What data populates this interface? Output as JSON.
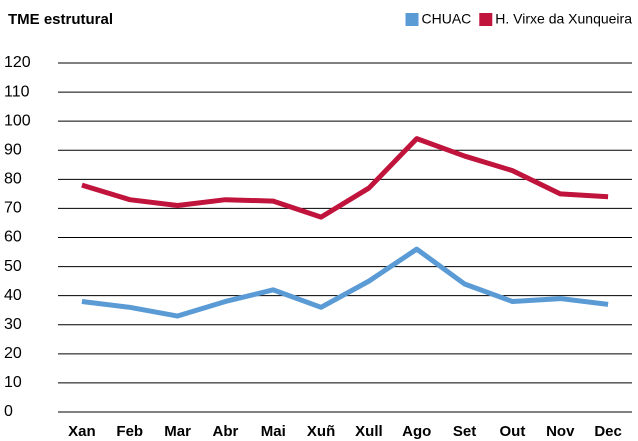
{
  "chart_data": {
    "type": "line",
    "title": "TME estrutural",
    "categories": [
      "Xan",
      "Feb",
      "Mar",
      "Abr",
      "Mai",
      "Xuñ",
      "Xull",
      "Ago",
      "Set",
      "Out",
      "Nov",
      "Dec"
    ],
    "series": [
      {
        "name": "CHUAC",
        "color": "#5b9bd5",
        "values": [
          38,
          36,
          33,
          38,
          42,
          36,
          45,
          56,
          44,
          38,
          39,
          37
        ]
      },
      {
        "name": "H. Virxe da Xunqueira",
        "color": "#c0143c",
        "values": [
          78,
          73,
          71,
          73,
          72.5,
          67,
          77,
          94,
          88,
          83,
          75,
          74
        ]
      }
    ],
    "ylim": [
      0,
      120
    ],
    "yticks": [
      0,
      10,
      20,
      30,
      40,
      50,
      60,
      70,
      80,
      90,
      100,
      110,
      120
    ],
    "grid": true,
    "legend": "top-right"
  }
}
